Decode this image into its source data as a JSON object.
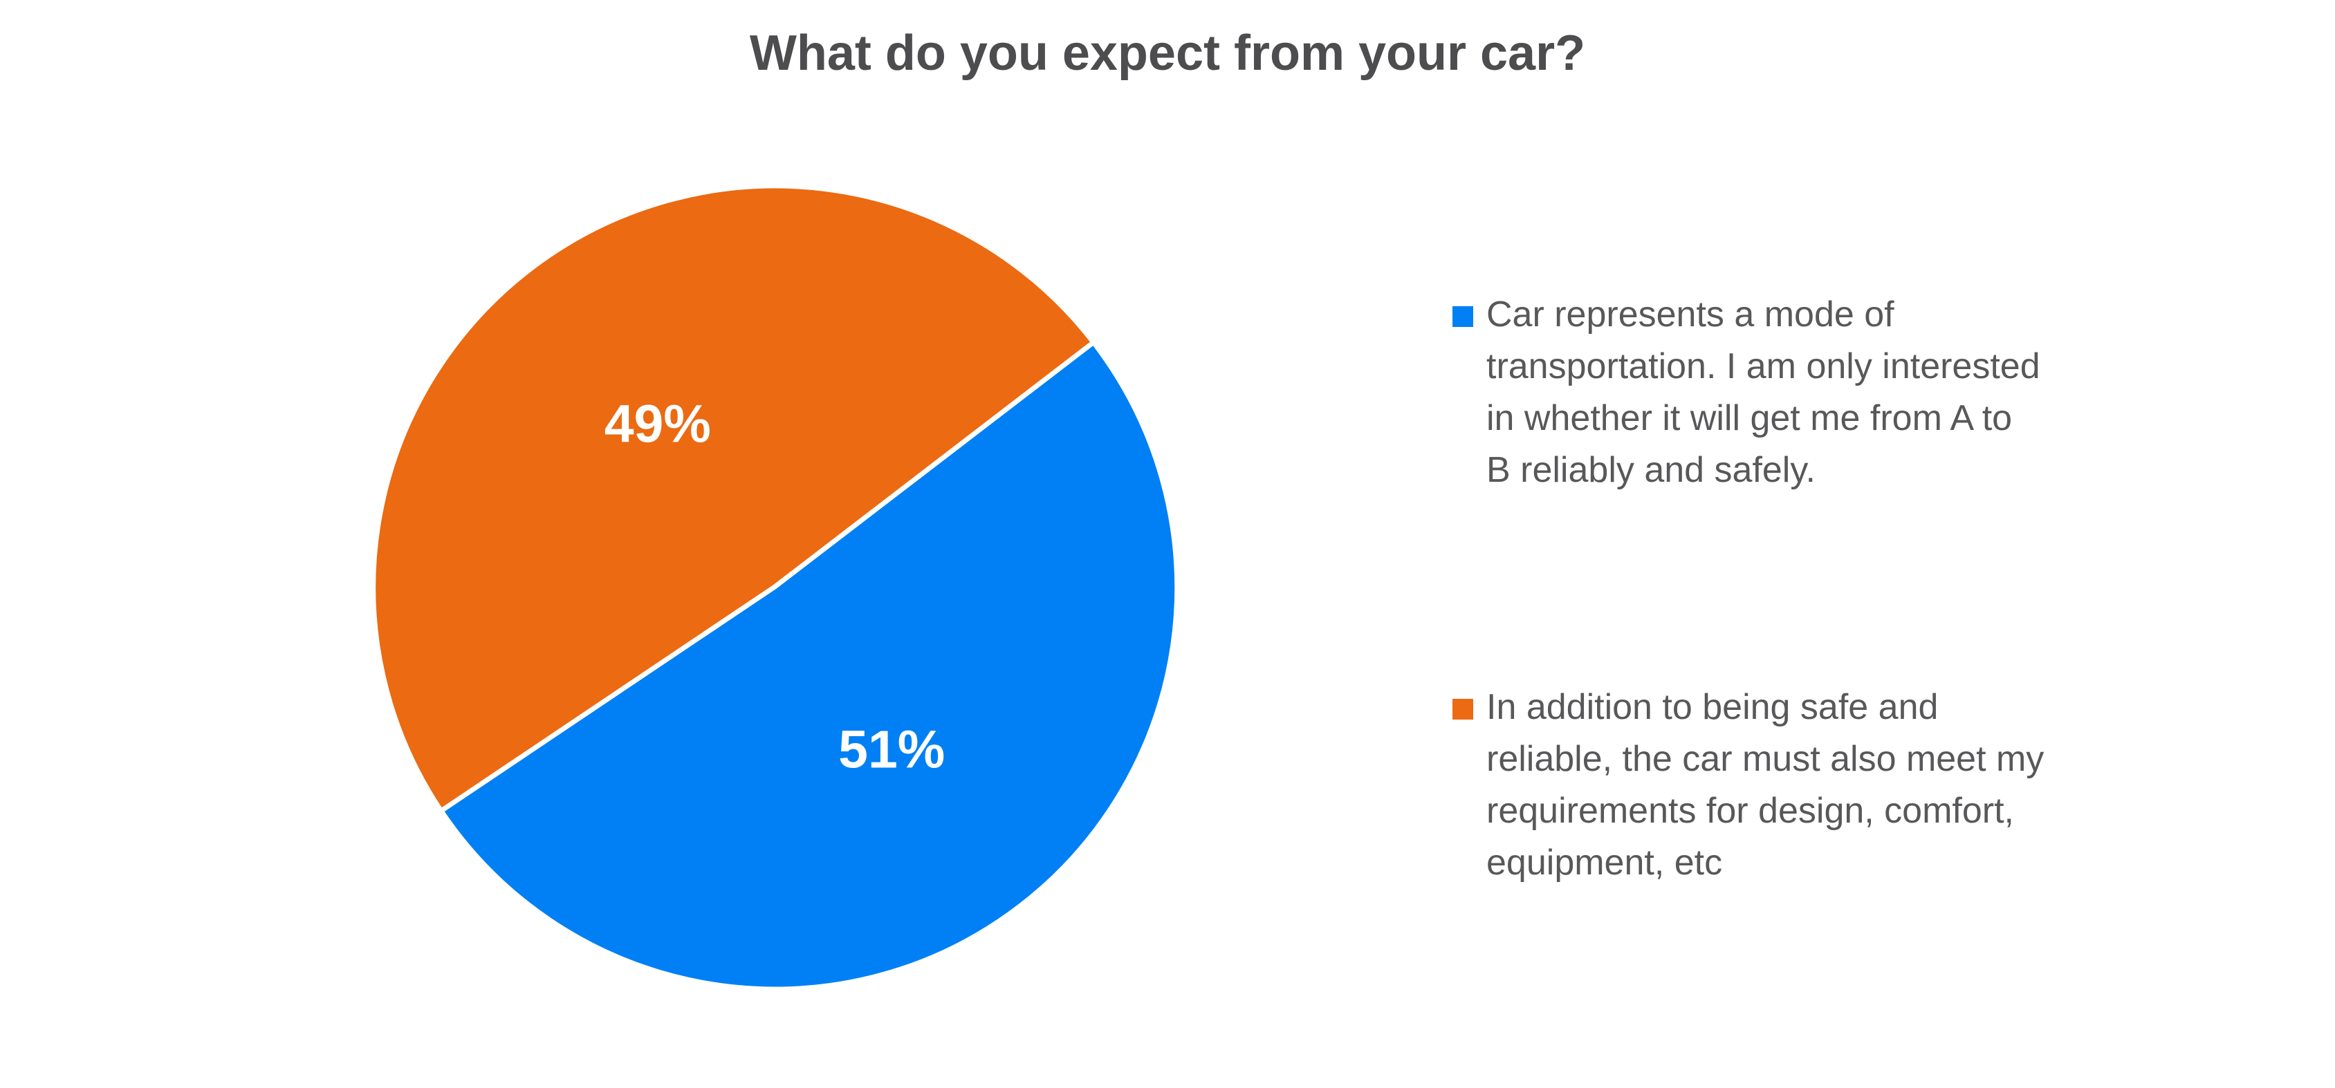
{
  "chart_data": {
    "type": "pie",
    "title": "What do you expect from your car?",
    "categories": [
      "Car represents a mode of transportation. I am only interested in whether it will get me from A to B reliably and safely.",
      "In addition to being safe and reliable, the car must also meet my requirements for design, comfort, equipment, etc"
    ],
    "values": [
      51,
      49
    ],
    "slices": [
      {
        "name": "Car represents a mode of transportation. I am only interested in whether it will get me from A to B reliably and safely.",
        "value": 51,
        "percent_label": "51%",
        "color": "#0080F4"
      },
      {
        "name": "In addition to being safe and reliable, the car must also meet my requirements for design, comfort, equipment, etc",
        "value": 49,
        "percent_label": "49%",
        "color": "#EB6A12"
      }
    ],
    "start_angle_deg": 37.5,
    "direction": "clockwise",
    "divider_color": "#FFFFFF",
    "data_label_style": "white bold percent inside slice",
    "title_color": "#4D4D4F",
    "legend_text_color": "#58585A",
    "legend_position": "right",
    "background": "#FFFFFF"
  },
  "legend": {
    "items": [
      {
        "lines": [
          "Car represents a mode of",
          "transportation. I am only interested",
          "in whether it will get me from A to",
          "B reliably and safely."
        ]
      },
      {
        "lines": [
          "In addition to being safe and",
          "reliable, the car must also meet my",
          "requirements for design, comfort,",
          "equipment, etc"
        ]
      }
    ]
  }
}
